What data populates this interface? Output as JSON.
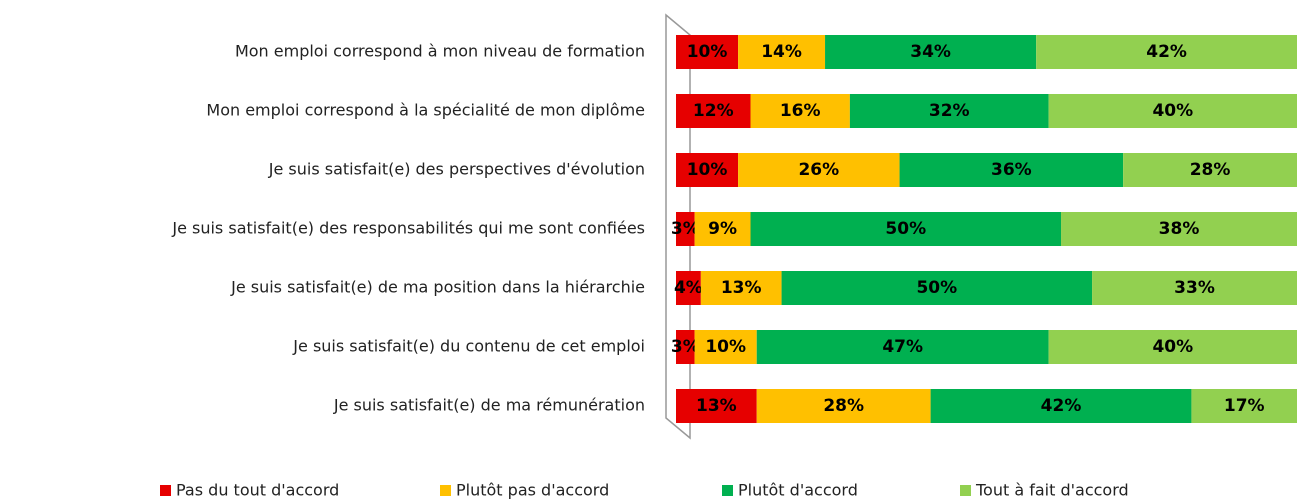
{
  "chart_data": {
    "type": "stacked-bar-horizontal",
    "categories": [
      "Mon emploi correspond à mon niveau de formation",
      "Mon emploi correspond à la spécialité de mon diplôme",
      "Je suis satisfait(e) des perspectives d'évolution",
      "Je suis satisfait(e) des responsabilités qui me sont confiées",
      "Je suis satisfait(e) de ma position dans la hiérarchie",
      "Je suis satisfait(e) du contenu de cet emploi",
      "Je suis satisfait(e) de ma rémunération"
    ],
    "xlim": [
      0,
      100
    ],
    "legend": "bottom",
    "series": [
      {
        "name": "Pas du tout d'accord",
        "color": "#e60000",
        "values": [
          10,
          12,
          10,
          3,
          4,
          3,
          13
        ],
        "value_labels": [
          "10%",
          "12%",
          "10%",
          "3%",
          "4%",
          "3%",
          "13%"
        ]
      },
      {
        "name": "Plutôt pas d'accord",
        "color": "#ffc000",
        "values": [
          14,
          16,
          26,
          9,
          13,
          10,
          28
        ],
        "value_labels": [
          "14%",
          "16%",
          "26%",
          "9%",
          "13%",
          "10%",
          "28%"
        ]
      },
      {
        "name": "Plutôt d'accord",
        "color": "#00b050",
        "values": [
          34,
          32,
          36,
          50,
          50,
          47,
          42
        ],
        "value_labels": [
          "34%",
          "32%",
          "36%",
          "50%",
          "50%",
          "47%",
          "42%"
        ]
      },
      {
        "name": "Tout à fait d'accord",
        "color": "#92d050",
        "values": [
          42,
          40,
          28,
          38,
          33,
          40,
          17
        ],
        "value_labels": [
          "42%",
          "40%",
          "28%",
          "38%",
          "33%",
          "40%",
          "17%"
        ]
      }
    ]
  }
}
